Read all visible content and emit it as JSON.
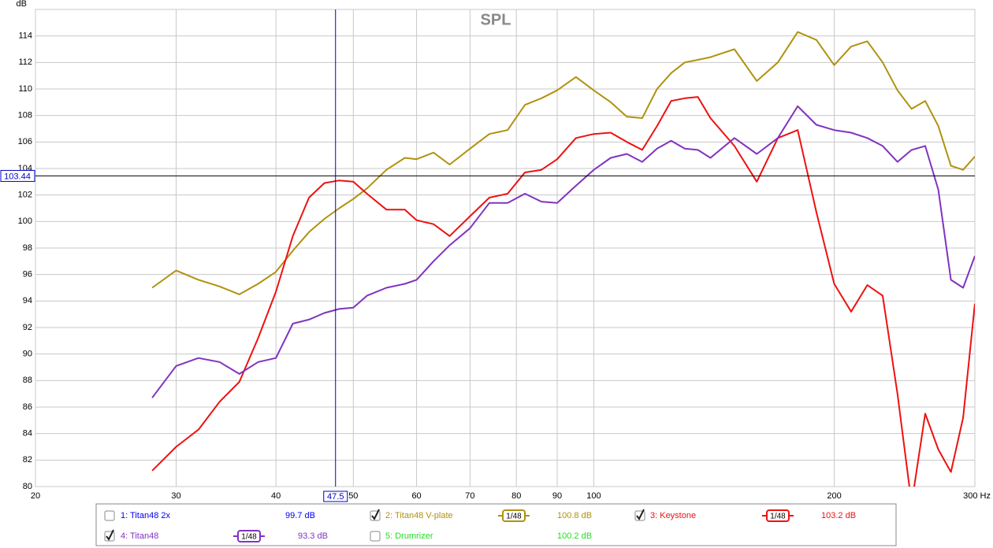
{
  "chart_data": {
    "type": "line",
    "title": "SPL",
    "y_label": "dB",
    "x_scale": "log",
    "grid": true,
    "xlim": [
      20,
      300
    ],
    "ylim": [
      80,
      116
    ],
    "xticks": [
      20,
      30,
      40,
      50,
      60,
      70,
      80,
      90,
      100,
      200,
      {
        "value": 300,
        "label": "300 Hz"
      }
    ],
    "yticks": [
      80,
      82,
      84,
      86,
      88,
      90,
      92,
      94,
      96,
      98,
      100,
      102,
      104,
      106,
      108,
      110,
      112,
      114
    ],
    "cursor": {
      "x": 47.5,
      "y": 103.44,
      "color": "#0000cc"
    },
    "x": [
      28,
      30,
      32,
      34,
      36,
      38,
      40,
      42,
      44,
      46,
      48,
      50,
      52,
      55,
      58,
      60,
      63,
      66,
      70,
      74,
      78,
      82,
      86,
      90,
      95,
      100,
      105,
      110,
      115,
      120,
      125,
      130,
      135,
      140,
      150,
      160,
      170,
      180,
      190,
      200,
      210,
      220,
      230,
      240,
      250,
      260,
      270,
      280,
      290,
      300
    ],
    "series": [
      {
        "name": "1: Titan48 2x",
        "color": "#0000ee",
        "checked": false,
        "value_label": "99.7 dB"
      },
      {
        "name": "2: Titan48 V-plate",
        "color": "#b0920f",
        "checked": true,
        "smoothing": "1/48",
        "value_label": "100.8 dB",
        "values": [
          95.0,
          96.3,
          95.6,
          95.1,
          94.5,
          95.3,
          96.2,
          97.8,
          99.2,
          100.2,
          101.0,
          101.7,
          102.5,
          103.9,
          104.8,
          104.7,
          105.2,
          104.3,
          105.5,
          106.6,
          106.9,
          108.8,
          109.3,
          109.9,
          110.9,
          109.9,
          109.0,
          107.9,
          107.8,
          110.0,
          111.2,
          112.0,
          112.2,
          112.4,
          113.0,
          110.6,
          112.0,
          114.3,
          113.7,
          111.8,
          113.2,
          113.6,
          112.0,
          109.9,
          108.5,
          109.1,
          107.2,
          104.2,
          103.9,
          104.9
        ]
      },
      {
        "name": "3: Keystone",
        "color": "#ee1111",
        "checked": true,
        "smoothing": "1/48",
        "value_label": "103.2 dB",
        "values": [
          81.2,
          83.0,
          84.3,
          86.4,
          87.9,
          91.2,
          94.7,
          98.9,
          101.8,
          102.9,
          103.1,
          103.0,
          102.1,
          100.9,
          100.9,
          100.1,
          99.8,
          98.9,
          100.4,
          101.8,
          102.1,
          103.7,
          103.9,
          104.7,
          106.3,
          106.6,
          106.7,
          106.0,
          105.4,
          107.2,
          109.1,
          109.3,
          109.4,
          107.8,
          105.7,
          103.0,
          106.3,
          106.9,
          100.7,
          95.3,
          93.2,
          95.2,
          94.4,
          87.0,
          78.7,
          85.5,
          82.8,
          81.1,
          85.2,
          93.8
        ]
      },
      {
        "name": "4: Titan48",
        "color": "#8033c0",
        "checked": true,
        "smoothing": "1/48",
        "value_label": "93.3 dB",
        "values": [
          86.7,
          89.1,
          89.7,
          89.4,
          88.5,
          89.4,
          89.7,
          92.3,
          92.6,
          93.1,
          93.4,
          93.5,
          94.4,
          95.0,
          95.3,
          95.6,
          97.0,
          98.2,
          99.5,
          101.4,
          101.4,
          102.1,
          101.5,
          101.4,
          102.7,
          103.9,
          104.8,
          105.1,
          104.5,
          105.5,
          106.1,
          105.5,
          105.4,
          104.8,
          106.3,
          105.1,
          106.3,
          108.7,
          107.3,
          106.9,
          106.7,
          106.3,
          105.7,
          104.5,
          105.4,
          105.7,
          102.4,
          95.6,
          95.0,
          97.4
        ]
      },
      {
        "name": "5: Drumrizer",
        "color": "#22dd22",
        "checked": false,
        "value_label": "100.2 dB"
      }
    ]
  }
}
